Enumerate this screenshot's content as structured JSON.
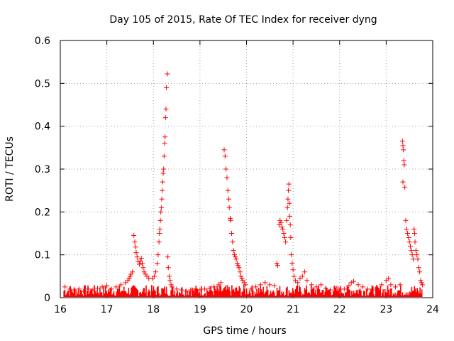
{
  "chart_data": {
    "type": "scatter",
    "title": "Day 105 of 2015, Rate Of TEC Index for receiver dyng",
    "xlabel": "GPS time / hours",
    "ylabel": "ROTI / TECUs",
    "xlim": [
      16,
      24
    ],
    "ylim": [
      0,
      0.6
    ],
    "xticks": [
      "16",
      "17",
      "18",
      "19",
      "20",
      "21",
      "22",
      "23",
      "24"
    ],
    "yticks": [
      "0",
      "0.1",
      "0.2",
      "0.3",
      "0.4",
      "0.5",
      "0.6"
    ],
    "grid": true,
    "marker": "+",
    "color": "#ff0000",
    "series": [
      {
        "name": "ROTI",
        "points": [
          [
            17.58,
            0.145
          ],
          [
            17.6,
            0.13
          ],
          [
            17.62,
            0.118
          ],
          [
            17.63,
            0.105
          ],
          [
            17.65,
            0.095
          ],
          [
            17.67,
            0.085
          ],
          [
            17.7,
            0.078
          ],
          [
            17.72,
            0.085
          ],
          [
            17.74,
            0.092
          ],
          [
            17.76,
            0.08
          ],
          [
            17.78,
            0.07
          ],
          [
            17.8,
            0.06
          ],
          [
            17.83,
            0.055
          ],
          [
            17.86,
            0.05
          ],
          [
            17.9,
            0.045
          ],
          [
            17.55,
            0.06
          ],
          [
            17.52,
            0.055
          ],
          [
            17.5,
            0.05
          ],
          [
            17.48,
            0.045
          ],
          [
            17.45,
            0.04
          ],
          [
            17.98,
            0.045
          ],
          [
            18.02,
            0.05
          ],
          [
            18.05,
            0.06
          ],
          [
            18.08,
            0.08
          ],
          [
            18.1,
            0.1
          ],
          [
            18.12,
            0.13
          ],
          [
            18.13,
            0.15
          ],
          [
            18.14,
            0.16
          ],
          [
            18.15,
            0.18
          ],
          [
            18.16,
            0.2
          ],
          [
            18.17,
            0.21
          ],
          [
            18.18,
            0.23
          ],
          [
            18.19,
            0.25
          ],
          [
            18.2,
            0.27
          ],
          [
            18.21,
            0.29
          ],
          [
            18.22,
            0.3
          ],
          [
            18.23,
            0.33
          ],
          [
            18.24,
            0.36
          ],
          [
            18.25,
            0.375
          ],
          [
            18.26,
            0.42
          ],
          [
            18.27,
            0.44
          ],
          [
            18.28,
            0.49
          ],
          [
            18.3,
            0.522
          ],
          [
            18.31,
            0.095
          ],
          [
            18.32,
            0.07
          ],
          [
            18.34,
            0.05
          ],
          [
            18.36,
            0.04
          ],
          [
            18.38,
            0.03
          ],
          [
            18.4,
            0.025
          ],
          [
            19.52,
            0.345
          ],
          [
            19.54,
            0.33
          ],
          [
            19.56,
            0.3
          ],
          [
            19.58,
            0.28
          ],
          [
            19.6,
            0.25
          ],
          [
            19.62,
            0.23
          ],
          [
            19.63,
            0.21
          ],
          [
            19.65,
            0.185
          ],
          [
            19.66,
            0.18
          ],
          [
            19.68,
            0.15
          ],
          [
            19.7,
            0.13
          ],
          [
            19.72,
            0.11
          ],
          [
            19.74,
            0.1
          ],
          [
            19.76,
            0.095
          ],
          [
            19.78,
            0.09
          ],
          [
            19.8,
            0.08
          ],
          [
            19.82,
            0.075
          ],
          [
            19.84,
            0.07
          ],
          [
            19.86,
            0.06
          ],
          [
            19.88,
            0.05
          ],
          [
            19.9,
            0.045
          ],
          [
            19.92,
            0.04
          ],
          [
            19.95,
            0.035
          ],
          [
            19.98,
            0.03
          ],
          [
            19.45,
            0.035
          ],
          [
            19.4,
            0.03
          ],
          [
            20.65,
            0.08
          ],
          [
            20.67,
            0.075
          ],
          [
            20.7,
            0.17
          ],
          [
            20.72,
            0.18
          ],
          [
            20.74,
            0.175
          ],
          [
            20.76,
            0.165
          ],
          [
            20.78,
            0.16
          ],
          [
            20.8,
            0.15
          ],
          [
            20.82,
            0.14
          ],
          [
            20.84,
            0.13
          ],
          [
            20.86,
            0.18
          ],
          [
            20.88,
            0.21
          ],
          [
            20.89,
            0.23
          ],
          [
            20.9,
            0.25
          ],
          [
            20.91,
            0.265
          ],
          [
            20.92,
            0.22
          ],
          [
            20.93,
            0.19
          ],
          [
            20.94,
            0.17
          ],
          [
            20.95,
            0.14
          ],
          [
            20.96,
            0.1
          ],
          [
            20.98,
            0.08
          ],
          [
            21.0,
            0.065
          ],
          [
            21.02,
            0.05
          ],
          [
            21.05,
            0.04
          ],
          [
            21.1,
            0.035
          ],
          [
            21.15,
            0.045
          ],
          [
            21.2,
            0.05
          ],
          [
            21.25,
            0.06
          ],
          [
            21.3,
            0.04
          ],
          [
            23.35,
            0.365
          ],
          [
            23.36,
            0.355
          ],
          [
            23.37,
            0.345
          ],
          [
            23.38,
            0.32
          ],
          [
            23.39,
            0.31
          ],
          [
            23.36,
            0.27
          ],
          [
            23.4,
            0.258
          ],
          [
            23.42,
            0.18
          ],
          [
            23.44,
            0.16
          ],
          [
            23.46,
            0.15
          ],
          [
            23.48,
            0.14
          ],
          [
            23.5,
            0.13
          ],
          [
            23.52,
            0.12
          ],
          [
            23.54,
            0.11
          ],
          [
            23.56,
            0.1
          ],
          [
            23.58,
            0.09
          ],
          [
            23.6,
            0.16
          ],
          [
            23.61,
            0.15
          ],
          [
            23.62,
            0.13
          ],
          [
            23.64,
            0.11
          ],
          [
            23.66,
            0.1
          ],
          [
            23.68,
            0.09
          ],
          [
            23.7,
            0.07
          ],
          [
            23.72,
            0.06
          ],
          [
            23.74,
            0.04
          ],
          [
            23.76,
            0.035
          ],
          [
            23.78,
            0.03
          ],
          [
            16.1,
            0.025
          ],
          [
            16.2,
            0.02
          ],
          [
            16.3,
            0.018
          ],
          [
            16.4,
            0.02
          ],
          [
            16.5,
            0.015
          ],
          [
            16.6,
            0.02
          ],
          [
            16.7,
            0.018
          ],
          [
            16.8,
            0.022
          ],
          [
            16.9,
            0.025
          ],
          [
            17.0,
            0.028
          ],
          [
            17.1,
            0.02
          ],
          [
            17.2,
            0.025
          ],
          [
            17.3,
            0.03
          ],
          [
            17.4,
            0.035
          ],
          [
            18.5,
            0.02
          ],
          [
            18.6,
            0.018
          ],
          [
            18.7,
            0.015
          ],
          [
            18.8,
            0.018
          ],
          [
            18.9,
            0.015
          ],
          [
            19.0,
            0.018
          ],
          [
            19.1,
            0.02
          ],
          [
            19.2,
            0.022
          ],
          [
            19.3,
            0.025
          ],
          [
            20.1,
            0.02
          ],
          [
            20.2,
            0.025
          ],
          [
            20.3,
            0.03
          ],
          [
            20.4,
            0.035
          ],
          [
            20.5,
            0.03
          ],
          [
            20.6,
            0.028
          ],
          [
            21.4,
            0.03
          ],
          [
            21.5,
            0.025
          ],
          [
            21.6,
            0.03
          ],
          [
            21.7,
            0.022
          ],
          [
            21.8,
            0.018
          ],
          [
            21.9,
            0.015
          ],
          [
            22.0,
            0.018
          ],
          [
            22.1,
            0.02
          ],
          [
            22.2,
            0.028
          ],
          [
            22.25,
            0.035
          ],
          [
            22.3,
            0.038
          ],
          [
            22.4,
            0.03
          ],
          [
            22.5,
            0.025
          ],
          [
            22.6,
            0.02
          ],
          [
            22.7,
            0.018
          ],
          [
            22.8,
            0.022
          ],
          [
            22.9,
            0.03
          ],
          [
            23.0,
            0.04
          ],
          [
            23.05,
            0.045
          ],
          [
            23.1,
            0.03
          ],
          [
            23.2,
            0.025
          ],
          [
            23.3,
            0.03
          ]
        ]
      }
    ]
  }
}
